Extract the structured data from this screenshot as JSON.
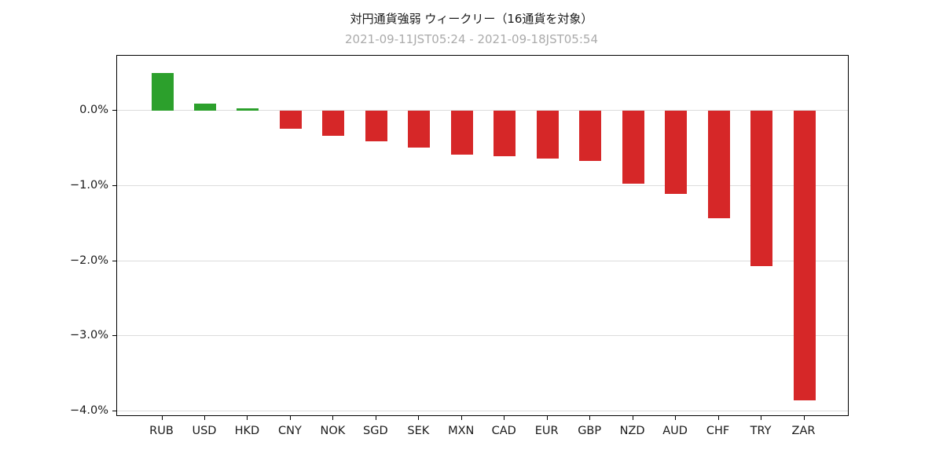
{
  "chart_data": {
    "type": "bar",
    "title": "対円通貨強弱 ウィークリー（16通貨を対象）",
    "subtitle": "2021-09-11JST05:24 - 2021-09-18JST05:54",
    "categories": [
      "RUB",
      "USD",
      "HKD",
      "CNY",
      "NOK",
      "SGD",
      "SEK",
      "MXN",
      "CAD",
      "EUR",
      "GBP",
      "NZD",
      "AUD",
      "CHF",
      "TRY",
      "ZAR"
    ],
    "values": [
      0.5,
      0.09,
      0.03,
      -0.24,
      -0.33,
      -0.41,
      -0.49,
      -0.58,
      -0.61,
      -0.64,
      -0.67,
      -0.97,
      -1.11,
      -1.43,
      -2.07,
      -3.85
    ],
    "unit": "%",
    "positive_color": "#2ca02c",
    "negative_color": "#d62728",
    "ylim": [
      -4.07,
      0.73
    ],
    "yticks": [
      0,
      -1,
      -2,
      -3,
      -4
    ],
    "ytick_labels": [
      "0.0%",
      "−1.0%",
      "−2.0%",
      "−3.0%",
      "−4.0%"
    ],
    "grid": true,
    "legend": "none"
  }
}
